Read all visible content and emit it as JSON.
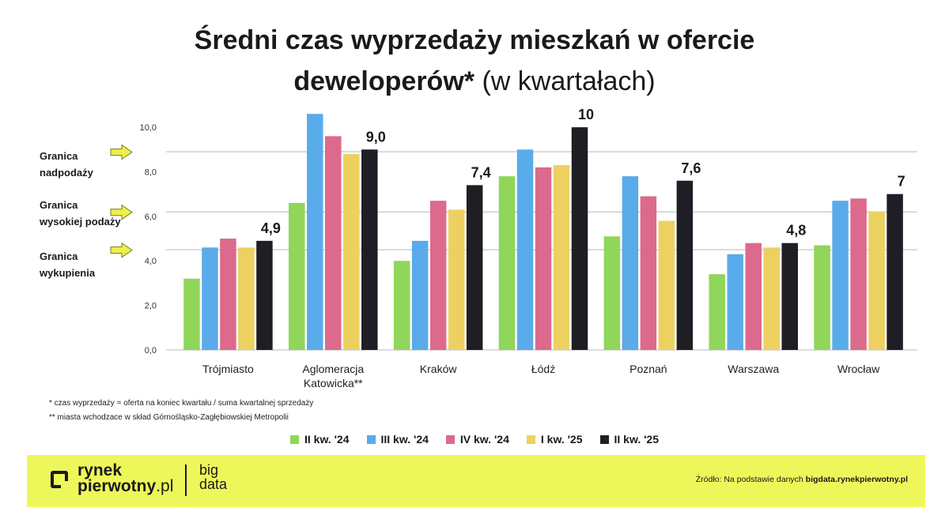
{
  "title": {
    "line1": "Średni czas wyprzedaży mieszkań w ofercie",
    "line2_bold": "deweloperów*",
    "line2_light": " (w kwartałach)"
  },
  "side_labels": {
    "oversupply": [
      "Granica",
      "nadpodaży"
    ],
    "high_supply": [
      "Granica",
      "wysokiej podaży"
    ],
    "buyout": [
      "Granica",
      "wykupienia"
    ]
  },
  "notes": {
    "note1": "* czas wyprzedaży = oferta na koniec kwartału / suma kwartalnej sprzedaży",
    "note2": "** miasta wchodzace w skład Górnośląsko-Zagłębiowskiej Metropolii"
  },
  "footer": {
    "brand_line1": "rynek",
    "brand_line2": "pierwotny",
    "brand_suffix": ".pl",
    "bigdata_line1": "big",
    "bigdata_line2": "data",
    "source_prefix": "Źródło: Na podstawie danych ",
    "source_bold": "bigdata.rynekpierwotny.pl"
  },
  "colors": {
    "series": [
      "#8fd65a",
      "#5aabea",
      "#dc6a8d",
      "#ecd161",
      "#1e1e24"
    ],
    "footer_bg": "#eef75a",
    "arrow": "#ecf04a"
  },
  "chart_data": {
    "type": "bar",
    "categories": [
      [
        "Trójmiasto"
      ],
      [
        "Aglomeracja",
        "Katowicka**"
      ],
      [
        "Kraków"
      ],
      [
        "Łódź"
      ],
      [
        "Poznań"
      ],
      [
        "Warszawa"
      ],
      [
        "Wrocław"
      ]
    ],
    "series": [
      {
        "name": "II kw. '24",
        "values": [
          3.2,
          6.6,
          4.0,
          7.8,
          5.1,
          3.4,
          4.7
        ]
      },
      {
        "name": "III kw. '24",
        "values": [
          4.6,
          10.6,
          4.9,
          9.0,
          7.8,
          4.3,
          6.7
        ]
      },
      {
        "name": "IV kw. '24",
        "values": [
          5.0,
          9.6,
          6.7,
          8.2,
          6.9,
          4.8,
          6.8
        ]
      },
      {
        "name": "I kw. '25",
        "values": [
          4.6,
          8.8,
          6.3,
          8.3,
          5.8,
          4.6,
          6.2
        ]
      },
      {
        "name": "II kw. '25",
        "values": [
          4.9,
          9.0,
          7.4,
          10.0,
          7.6,
          4.8,
          7.0
        ]
      }
    ],
    "last_value_labels": [
      "4,9",
      "9,0",
      "7,4",
      "10",
      "7,6",
      "4,8",
      "7"
    ],
    "ylim": [
      0,
      10.5
    ],
    "yticks": [
      "0,0",
      "2,0",
      "4,0",
      "6,0",
      "8,0",
      "10,0"
    ],
    "reference_lines": [
      8.9,
      6.2,
      4.5
    ],
    "grid": false,
    "legend_position": "bottom"
  }
}
